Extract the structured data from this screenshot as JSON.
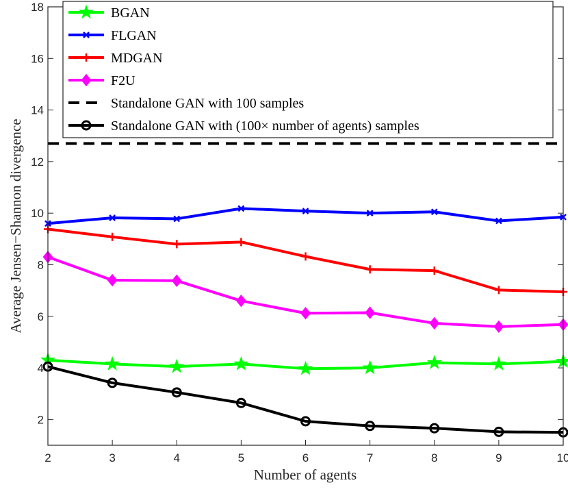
{
  "chart_data": {
    "type": "line",
    "title": "",
    "xlabel": "Number of agents",
    "ylabel": "Average Jensen−Shannon divergence",
    "xlim": [
      2,
      10
    ],
    "ylim": [
      1,
      18
    ],
    "xticks": [
      2,
      3,
      4,
      5,
      6,
      7,
      8,
      9,
      10
    ],
    "yticks": [
      2,
      4,
      6,
      8,
      10,
      12,
      14,
      16,
      18
    ],
    "grid": false,
    "legend_position": "top",
    "x": [
      2,
      3,
      4,
      5,
      6,
      7,
      8,
      9,
      10
    ],
    "series": [
      {
        "name": "BGAN",
        "color": "#00ff00",
        "marker": "pentagram",
        "style": "solid",
        "values": [
          4.3,
          4.15,
          4.05,
          4.15,
          3.97,
          4.0,
          4.2,
          4.15,
          4.25
        ]
      },
      {
        "name": "FLGAN",
        "color": "#0000ff",
        "marker": "x",
        "style": "solid",
        "values": [
          9.6,
          9.82,
          9.78,
          10.18,
          10.08,
          10.0,
          10.05,
          9.7,
          9.85
        ]
      },
      {
        "name": "MDGAN",
        "color": "#ff0000",
        "marker": "plus",
        "style": "solid",
        "values": [
          9.38,
          9.08,
          8.8,
          8.88,
          8.32,
          7.82,
          7.77,
          7.02,
          6.95
        ]
      },
      {
        "name": "F2U",
        "color": "#ff00ff",
        "marker": "diamond",
        "style": "solid",
        "values": [
          8.3,
          7.4,
          7.38,
          6.6,
          6.12,
          6.14,
          5.73,
          5.6,
          5.68
        ]
      },
      {
        "name": "Standalone GAN with 100 samples",
        "color": "#000000",
        "marker": "none",
        "style": "dashed",
        "values": [
          12.7,
          12.7,
          12.7,
          12.7,
          12.7,
          12.7,
          12.7,
          12.7,
          12.7
        ]
      },
      {
        "name": "Standalone GAN with (100× number of agents) samples",
        "color": "#000000",
        "marker": "circle",
        "style": "solid",
        "values": [
          4.05,
          3.42,
          3.05,
          2.64,
          1.93,
          1.75,
          1.66,
          1.52,
          1.5
        ]
      }
    ]
  }
}
